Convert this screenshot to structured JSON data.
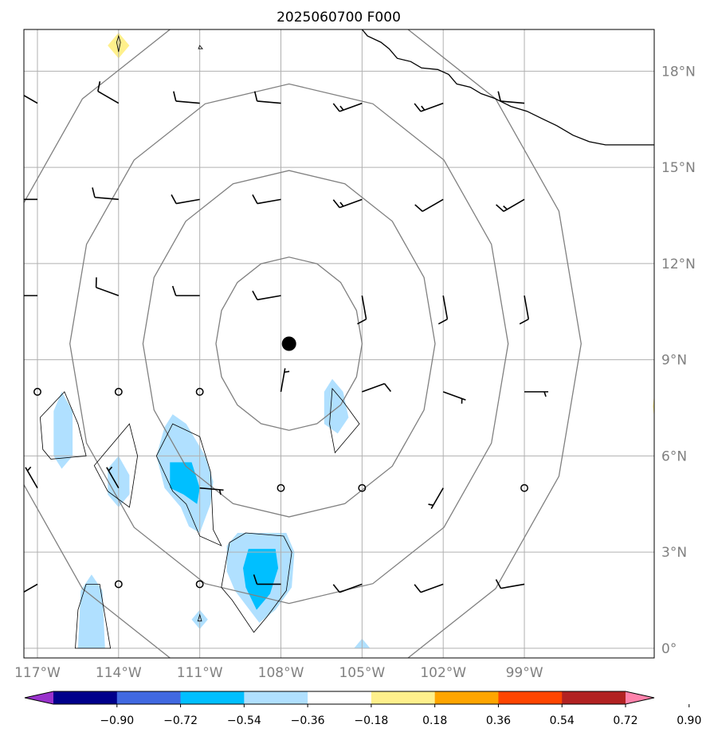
{
  "chart_data": {
    "type": "heatmap",
    "title": "2025060700 F000",
    "map": {
      "lon_range": [
        -117.5,
        -94.2
      ],
      "lat_range": [
        -0.3,
        19.3
      ],
      "grid": true,
      "lon_ticks": [
        -117,
        -114,
        -111,
        -108,
        -105,
        -102,
        -99
      ],
      "lon_tick_labels": [
        "117°W",
        "114°W",
        "111°W",
        "108°W",
        "105°W",
        "102°W",
        "99°W"
      ],
      "lat_ticks": [
        0,
        3,
        6,
        9,
        12,
        15,
        18
      ],
      "lat_tick_labels": [
        "0°",
        "3°N",
        "6°N",
        "9°N",
        "12°N",
        "15°N",
        "18°N"
      ],
      "center_marker": {
        "lon": -107.7,
        "lat": 9.5
      }
    },
    "range_rings_deg": [
      2.7,
      5.4,
      8.1,
      10.8
    ],
    "coastline": [
      [
        -105.0,
        19.3
      ],
      [
        -104.8,
        19.1
      ],
      [
        -104.3,
        18.9
      ],
      [
        -104.0,
        18.7
      ],
      [
        -103.7,
        18.4
      ],
      [
        -103.2,
        18.3
      ],
      [
        -102.8,
        18.1
      ],
      [
        -102.2,
        18.05
      ],
      [
        -101.8,
        17.9
      ],
      [
        -101.5,
        17.6
      ],
      [
        -101.0,
        17.5
      ],
      [
        -100.6,
        17.3
      ],
      [
        -100.1,
        17.15
      ],
      [
        -99.5,
        16.9
      ],
      [
        -98.9,
        16.75
      ],
      [
        -98.3,
        16.5
      ],
      [
        -97.8,
        16.3
      ],
      [
        -97.2,
        16.0
      ],
      [
        -96.6,
        15.8
      ],
      [
        -96.0,
        15.7
      ],
      [
        -94.2,
        15.7
      ]
    ],
    "contour_levels": [
      -0.9,
      -0.72,
      -0.54,
      -0.36,
      -0.18,
      0.18,
      0.36,
      0.54,
      0.72,
      0.9
    ],
    "colorbar_colors": [
      "#9932cc",
      "#00008b",
      "#4169e1",
      "#00bfff",
      "#b0e0ff",
      "#ffffff",
      "#fff08c",
      "#ffa500",
      "#ff4500",
      "#b22222",
      "#ff82ab"
    ],
    "colorbar_labels": [
      "−0.90",
      "−0.72",
      "−0.54",
      "−0.36",
      "−0.18",
      "0.18",
      "0.36",
      "0.54",
      "0.72",
      "0.90"
    ],
    "filled_regions": [
      {
        "level": "-0.36..-0.18",
        "color": "#b0e0ff",
        "points": [
          [
            -116.1,
            8.0
          ],
          [
            -115.7,
            7.4
          ],
          [
            -115.7,
            6.0
          ],
          [
            -116.1,
            5.6
          ],
          [
            -116.4,
            6.0
          ],
          [
            -116.4,
            7.4
          ]
        ]
      },
      {
        "level": "-0.36..-0.18",
        "color": "#b0e0ff",
        "points": [
          [
            -114.0,
            6.0
          ],
          [
            -113.6,
            5.4
          ],
          [
            -113.6,
            4.8
          ],
          [
            -114.0,
            4.4
          ],
          [
            -114.4,
            4.8
          ],
          [
            -114.4,
            5.6
          ]
        ]
      },
      {
        "level": "-0.36..-0.18",
        "color": "#b0e0ff",
        "points": [
          [
            -112.0,
            7.3
          ],
          [
            -111.5,
            7.0
          ],
          [
            -110.8,
            6.0
          ],
          [
            -110.5,
            5.2
          ],
          [
            -110.6,
            4.5
          ],
          [
            -111.0,
            3.6
          ],
          [
            -111.4,
            3.8
          ],
          [
            -111.7,
            4.4
          ],
          [
            -112.3,
            5.0
          ],
          [
            -112.6,
            6.0
          ],
          [
            -112.3,
            6.9
          ]
        ]
      },
      {
        "level": "-0.54..-0.36",
        "color": "#00bfff",
        "points": [
          [
            -112.1,
            5.8
          ],
          [
            -111.3,
            5.8
          ],
          [
            -111.0,
            5.0
          ],
          [
            -111.1,
            4.5
          ],
          [
            -111.6,
            4.8
          ],
          [
            -112.1,
            5.0
          ]
        ]
      },
      {
        "level": "-0.36..-0.18",
        "color": "#b0e0ff",
        "points": [
          [
            -109.6,
            3.6
          ],
          [
            -107.8,
            3.6
          ],
          [
            -107.5,
            3.0
          ],
          [
            -107.6,
            1.9
          ],
          [
            -108.2,
            1.2
          ],
          [
            -108.8,
            0.8
          ],
          [
            -109.7,
            1.8
          ],
          [
            -110.0,
            2.4
          ],
          [
            -110.0,
            3.2
          ]
        ]
      },
      {
        "level": "-0.54..-0.36",
        "color": "#00bfff",
        "points": [
          [
            -109.2,
            3.1
          ],
          [
            -108.2,
            3.1
          ],
          [
            -108.1,
            2.5
          ],
          [
            -108.4,
            1.7
          ],
          [
            -108.9,
            1.2
          ],
          [
            -109.3,
            1.9
          ],
          [
            -109.4,
            2.5
          ]
        ]
      },
      {
        "level": "-0.36..-0.18",
        "color": "#b0e0ff",
        "points": [
          [
            -106.1,
            8.4
          ],
          [
            -105.7,
            8.0
          ],
          [
            -105.5,
            7.2
          ],
          [
            -105.9,
            6.7
          ],
          [
            -106.4,
            7.0
          ],
          [
            -106.4,
            8.0
          ]
        ]
      },
      {
        "level": "-0.36..-0.18",
        "color": "#b0e0ff",
        "points": [
          [
            -115.0,
            2.3
          ],
          [
            -114.6,
            1.8
          ],
          [
            -114.5,
            0.0
          ],
          [
            -115.5,
            0.0
          ],
          [
            -115.4,
            1.8
          ]
        ]
      },
      {
        "level": "-0.36..-0.18",
        "color": "#b0e0ff",
        "points": [
          [
            -111.0,
            1.2
          ],
          [
            -110.7,
            0.9
          ],
          [
            -111.0,
            0.6
          ],
          [
            -111.3,
            0.9
          ]
        ]
      },
      {
        "level": "-0.36..-0.18",
        "color": "#b0e0ff",
        "points": [
          [
            -105.0,
            0.3
          ],
          [
            -104.7,
            0.0
          ],
          [
            -105.3,
            0.0
          ]
        ]
      },
      {
        "level": "0.18..0.36",
        "color": "#fff08c",
        "points": [
          [
            -114.0,
            19.2
          ],
          [
            -113.6,
            18.8
          ],
          [
            -114.0,
            18.4
          ],
          [
            -114.4,
            18.8
          ]
        ]
      },
      {
        "level": "0.18..0.36",
        "color": "#fff08c",
        "points": [
          [
            -94.2,
            7.9
          ],
          [
            -94.2,
            7.2
          ],
          [
            -94.25,
            7.55
          ]
        ]
      }
    ],
    "contour_lines": [
      {
        "points": [
          [
            -116.0,
            8.0
          ],
          [
            -115.5,
            7.0
          ],
          [
            -115.2,
            6.0
          ],
          [
            -116.5,
            5.9
          ],
          [
            -116.8,
            6.2
          ],
          [
            -116.9,
            7.2
          ]
        ]
      },
      {
        "points": [
          [
            -113.6,
            7.0
          ],
          [
            -113.3,
            6.0
          ],
          [
            -113.5,
            4.9
          ],
          [
            -113.6,
            4.4
          ],
          [
            -114.4,
            4.9
          ],
          [
            -114.9,
            5.7
          ]
        ]
      },
      {
        "points": [
          [
            -112.0,
            7.0
          ],
          [
            -111.0,
            6.6
          ],
          [
            -110.6,
            5.5
          ],
          [
            -110.5,
            3.7
          ],
          [
            -110.2,
            3.2
          ],
          [
            -111.0,
            3.5
          ],
          [
            -111.5,
            4.5
          ],
          [
            -112.0,
            4.9
          ],
          [
            -112.6,
            6.0
          ]
        ]
      },
      {
        "points": [
          [
            -109.3,
            3.6
          ],
          [
            -107.9,
            3.5
          ],
          [
            -107.6,
            3.0
          ],
          [
            -107.8,
            1.8
          ],
          [
            -108.5,
            1.0
          ],
          [
            -109.0,
            0.5
          ],
          [
            -109.8,
            1.5
          ],
          [
            -110.2,
            1.9
          ],
          [
            -109.9,
            3.3
          ]
        ]
      },
      {
        "points": [
          [
            -106.1,
            8.1
          ],
          [
            -105.7,
            7.7
          ],
          [
            -105.1,
            7.0
          ],
          [
            -106.0,
            6.1
          ],
          [
            -106.2,
            7.0
          ]
        ]
      },
      {
        "points": [
          [
            -115.2,
            2.0
          ],
          [
            -114.7,
            2.0
          ],
          [
            -114.5,
            1.0
          ],
          [
            -114.3,
            0.0
          ],
          [
            -115.6,
            0.0
          ],
          [
            -115.5,
            1.2
          ]
        ]
      },
      {
        "points": [
          [
            -111.0,
            1.05
          ],
          [
            -110.93,
            0.85
          ],
          [
            -111.07,
            0.85
          ]
        ]
      },
      {
        "points": [
          [
            -114.0,
            19.1
          ],
          [
            -113.93,
            18.9
          ],
          [
            -114.0,
            18.6
          ],
          [
            -114.07,
            18.9
          ]
        ]
      },
      {
        "points": [
          [
            -111.0,
            18.8
          ],
          [
            -110.9,
            18.7
          ],
          [
            -111.05,
            18.7
          ]
        ]
      }
    ],
    "wind_barbs": [
      {
        "lon": -117,
        "lat": 17.0,
        "dir_deg": 300,
        "speed_kt": 10
      },
      {
        "lon": -114,
        "lat": 17.0,
        "dir_deg": 300,
        "speed_kt": 10
      },
      {
        "lon": -111,
        "lat": 17.0,
        "dir_deg": 275,
        "speed_kt": 10
      },
      {
        "lon": -108,
        "lat": 17.0,
        "dir_deg": 275,
        "speed_kt": 10
      },
      {
        "lon": -105,
        "lat": 17.0,
        "dir_deg": 250,
        "speed_kt": 15
      },
      {
        "lon": -102,
        "lat": 17.0,
        "dir_deg": 250,
        "speed_kt": 15
      },
      {
        "lon": -99,
        "lat": 17.0,
        "dir_deg": 275,
        "speed_kt": 10
      },
      {
        "lon": -117,
        "lat": 14.0,
        "dir_deg": 270,
        "speed_kt": 10
      },
      {
        "lon": -114,
        "lat": 14.0,
        "dir_deg": 275,
        "speed_kt": 10
      },
      {
        "lon": -111,
        "lat": 14.0,
        "dir_deg": 260,
        "speed_kt": 10
      },
      {
        "lon": -108,
        "lat": 14.0,
        "dir_deg": 260,
        "speed_kt": 10
      },
      {
        "lon": -105,
        "lat": 14.0,
        "dir_deg": 250,
        "speed_kt": 15
      },
      {
        "lon": -102,
        "lat": 14.0,
        "dir_deg": 240,
        "speed_kt": 10
      },
      {
        "lon": -99,
        "lat": 14.0,
        "dir_deg": 240,
        "speed_kt": 15
      },
      {
        "lon": -117,
        "lat": 11.0,
        "dir_deg": 270,
        "speed_kt": 10
      },
      {
        "lon": -114,
        "lat": 11.0,
        "dir_deg": 290,
        "speed_kt": 10
      },
      {
        "lon": -111,
        "lat": 11.0,
        "dir_deg": 270,
        "speed_kt": 10
      },
      {
        "lon": -108,
        "lat": 11.0,
        "dir_deg": 260,
        "speed_kt": 10
      },
      {
        "lon": -105,
        "lat": 11.0,
        "dir_deg": 170,
        "speed_kt": 10
      },
      {
        "lon": -102,
        "lat": 11.0,
        "dir_deg": 170,
        "speed_kt": 10
      },
      {
        "lon": -99,
        "lat": 11.0,
        "dir_deg": 170,
        "speed_kt": 10
      },
      {
        "lon": -117,
        "lat": 8.0,
        "dir_deg": null,
        "speed_kt": 0
      },
      {
        "lon": -114,
        "lat": 8.0,
        "dir_deg": null,
        "speed_kt": 0
      },
      {
        "lon": -111,
        "lat": 8.0,
        "dir_deg": null,
        "speed_kt": 0
      },
      {
        "lon": -108,
        "lat": 8.0,
        "dir_deg": 10,
        "speed_kt": 5
      },
      {
        "lon": -105,
        "lat": 8.0,
        "dir_deg": 70,
        "speed_kt": 10
      },
      {
        "lon": -102,
        "lat": 8.0,
        "dir_deg": 110,
        "speed_kt": 5
      },
      {
        "lon": -99,
        "lat": 8.0,
        "dir_deg": 90,
        "speed_kt": 5
      },
      {
        "lon": -117,
        "lat": 5.0,
        "dir_deg": 330,
        "speed_kt": 5
      },
      {
        "lon": -114,
        "lat": 5.0,
        "dir_deg": 330,
        "speed_kt": 5
      },
      {
        "lon": -111,
        "lat": 5.0,
        "dir_deg": 95,
        "speed_kt": 5
      },
      {
        "lon": -108,
        "lat": 5.0,
        "dir_deg": null,
        "speed_kt": 0
      },
      {
        "lon": -105,
        "lat": 5.0,
        "dir_deg": null,
        "speed_kt": 0
      },
      {
        "lon": -102,
        "lat": 5.0,
        "dir_deg": 210,
        "speed_kt": 5
      },
      {
        "lon": -99,
        "lat": 5.0,
        "dir_deg": null,
        "speed_kt": 0
      },
      {
        "lon": -117,
        "lat": 2.0,
        "dir_deg": 240,
        "speed_kt": 10
      },
      {
        "lon": -114,
        "lat": 2.0,
        "dir_deg": null,
        "speed_kt": 0
      },
      {
        "lon": -111,
        "lat": 2.0,
        "dir_deg": null,
        "speed_kt": 0
      },
      {
        "lon": -108,
        "lat": 2.0,
        "dir_deg": 270,
        "speed_kt": 10
      },
      {
        "lon": -105,
        "lat": 2.0,
        "dir_deg": 250,
        "speed_kt": 10
      },
      {
        "lon": -102,
        "lat": 2.0,
        "dir_deg": 250,
        "speed_kt": 10
      },
      {
        "lon": -99,
        "lat": 2.0,
        "dir_deg": 260,
        "speed_kt": 10
      }
    ]
  }
}
